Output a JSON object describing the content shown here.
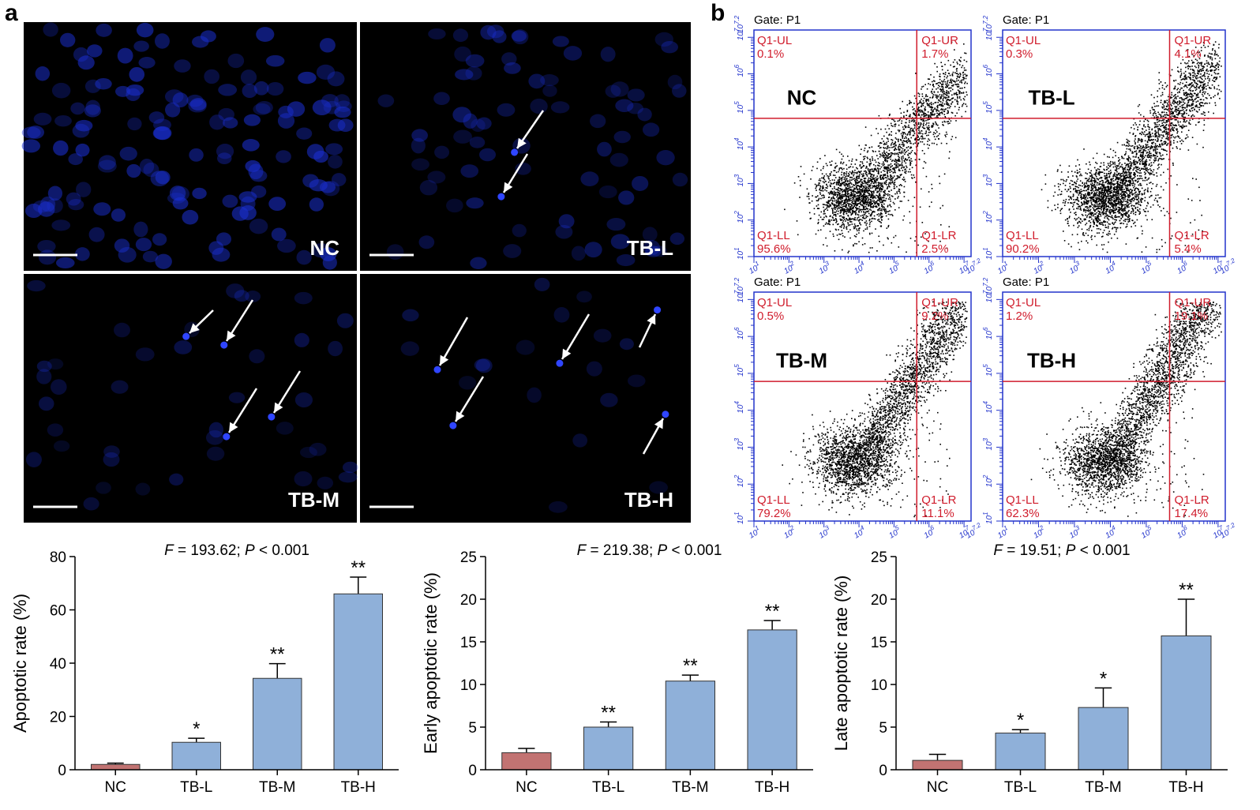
{
  "panel_a": {
    "label": "a",
    "images": [
      {
        "label": "NC"
      },
      {
        "label": "TB-L"
      },
      {
        "label": "TB-M"
      },
      {
        "label": "TB-H"
      }
    ]
  },
  "panel_b": {
    "label": "b",
    "gate": "Gate: P1",
    "axis_base": "10",
    "axis_exponents": [
      "1",
      "2",
      "3",
      "4",
      "5",
      "6",
      "7",
      "7.2"
    ],
    "plots": [
      {
        "label": "NC",
        "quadrants": [
          {
            "name": "Q1-UL",
            "value": "0.1%"
          },
          {
            "name": "Q1-UR",
            "value": "1.7%"
          },
          {
            "name": "Q1-LL",
            "value": "95.6%"
          },
          {
            "name": "Q1-LR",
            "value": "2.5%"
          }
        ]
      },
      {
        "label": "TB-L",
        "quadrants": [
          {
            "name": "Q1-UL",
            "value": "0.3%"
          },
          {
            "name": "Q1-UR",
            "value": "4.1%"
          },
          {
            "name": "Q1-LL",
            "value": "90.2%"
          },
          {
            "name": "Q1-LR",
            "value": "5.4%"
          }
        ]
      },
      {
        "label": "TB-M",
        "quadrants": [
          {
            "name": "Q1-UL",
            "value": "0.5%"
          },
          {
            "name": "Q1-UR",
            "value": "9.2%"
          },
          {
            "name": "Q1-LL",
            "value": "79.2%"
          },
          {
            "name": "Q1-LR",
            "value": "11.1%"
          }
        ]
      },
      {
        "label": "TB-H",
        "quadrants": [
          {
            "name": "Q1-UL",
            "value": "1.2%"
          },
          {
            "name": "Q1-UR",
            "value": "19.1%"
          },
          {
            "name": "Q1-LL",
            "value": "62.3%"
          },
          {
            "name": "Q1-LR",
            "value": "17.4%"
          }
        ]
      }
    ]
  },
  "chart_data": [
    {
      "type": "bar",
      "annotation_parts": [
        "F",
        " = 193.62; ",
        "P",
        " < 0.001"
      ],
      "ylabel": "Apoptotic rate (%)",
      "categories": [
        "NC",
        "TB-L",
        "TB-M",
        "TB-H"
      ],
      "values": [
        2,
        10.3,
        34.3,
        66
      ],
      "errors": [
        0.5,
        1.5,
        5.5,
        6.3
      ],
      "significance": [
        null,
        "*",
        "**",
        "**"
      ],
      "colors": [
        "#c27372",
        "#8fb0d9",
        "#8fb0d9",
        "#8fb0d9"
      ],
      "ylim": [
        0,
        80
      ],
      "yticks": [
        0,
        20,
        40,
        60,
        80
      ]
    },
    {
      "type": "bar",
      "annotation_parts": [
        "F",
        " = 219.38; ",
        "P",
        " < 0.001"
      ],
      "ylabel": "Early apoptotic rate (%)",
      "categories": [
        "NC",
        "TB-L",
        "TB-M",
        "TB-H"
      ],
      "values": [
        2,
        5,
        10.4,
        16.4
      ],
      "errors": [
        0.5,
        0.6,
        0.7,
        1.1
      ],
      "significance": [
        null,
        "**",
        "**",
        "**"
      ],
      "colors": [
        "#c27372",
        "#8fb0d9",
        "#8fb0d9",
        "#8fb0d9"
      ],
      "ylim": [
        0,
        25
      ],
      "yticks": [
        0,
        5,
        10,
        15,
        20,
        25
      ]
    },
    {
      "type": "bar",
      "annotation_parts": [
        "F",
        " = 19.51; ",
        "P",
        " < 0.001"
      ],
      "ylabel": "Late apoptotic rate (%)",
      "categories": [
        "NC",
        "TB-L",
        "TB-M",
        "TB-H"
      ],
      "values": [
        1.1,
        4.3,
        7.3,
        15.7
      ],
      "errors": [
        0.7,
        0.4,
        2.3,
        4.3
      ],
      "significance": [
        null,
        "*",
        "*",
        "**"
      ],
      "colors": [
        "#c27372",
        "#8fb0d9",
        "#8fb0d9",
        "#8fb0d9"
      ],
      "ylim": [
        0,
        25
      ],
      "yticks": [
        0,
        5,
        10,
        15,
        20,
        25
      ]
    }
  ]
}
